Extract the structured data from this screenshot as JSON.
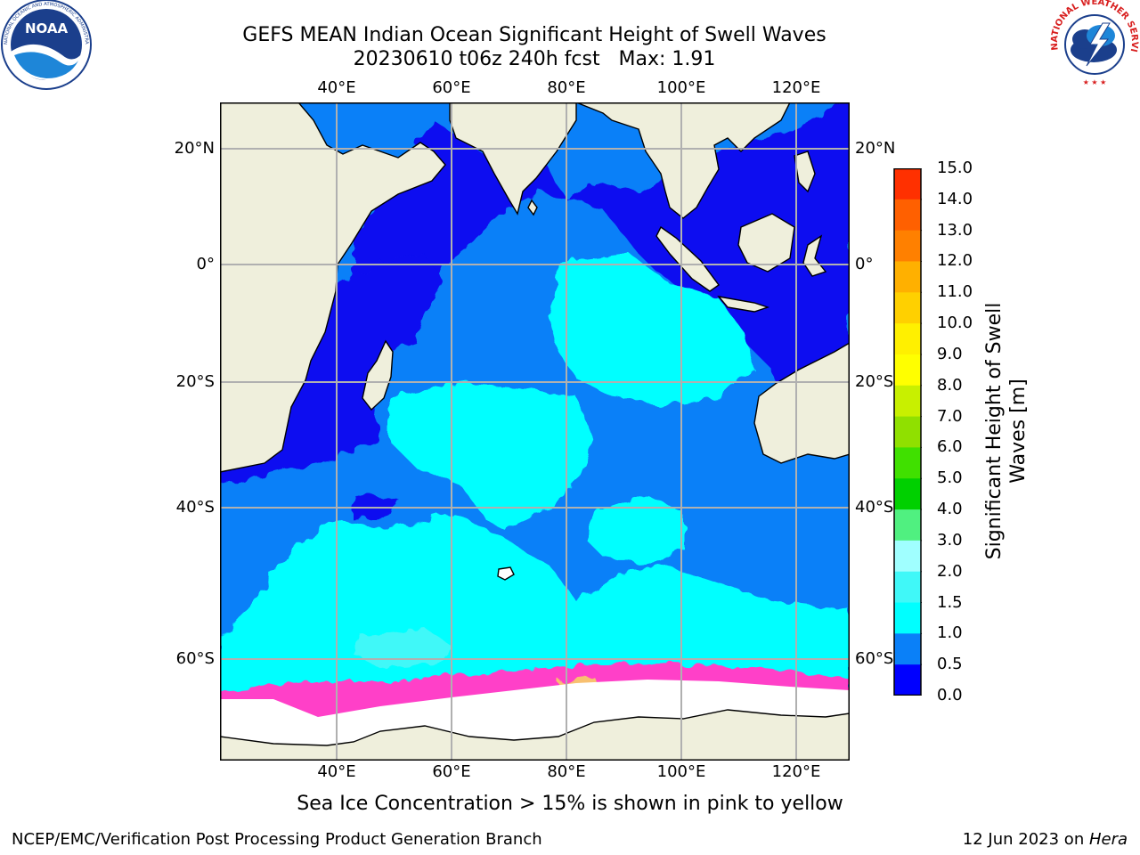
{
  "title": {
    "line1": "GEFS MEAN Indian Ocean Significant Height of Swell Waves",
    "line2": "20230610 t06z 240h fcst   Max: 1.91"
  },
  "logos": {
    "noaa_text": "NOAA",
    "noaa_ring_text": "NATIONAL OCEANIC AND ATMOSPHERIC ADMINISTRATION  ·  U.S. DEPARTMENT OF COMMERCE",
    "nws_ring_text": "NATIONAL WEATHER SERVICE"
  },
  "map": {
    "lon_labels_top": [
      "40°E",
      "60°E",
      "80°E",
      "100°E",
      "120°E"
    ],
    "lon_labels_bottom": [
      "40°E",
      "60°E",
      "80°E",
      "100°E",
      "120°E"
    ],
    "lat_labels_left": [
      "20°N",
      "0°",
      "20°S",
      "40°S",
      "60°S"
    ],
    "lat_labels_right": [
      "20°N",
      "0°",
      "20°S",
      "40°S",
      "60°S"
    ],
    "lon_values": [
      40,
      60,
      80,
      100,
      120
    ],
    "lat_values": [
      20,
      0,
      -20,
      -40,
      -60
    ],
    "colors": {
      "land": "#efefdc",
      "deep_blue": "#0a10f0",
      "mid_blue": "#0a80f8",
      "cyan": "#00ffff",
      "light_cyan": "#40f8f8",
      "ice_pink": "#ff40c8",
      "ice_orange": "#f8c070",
      "grid": "#b0b0b0"
    }
  },
  "colorbar": {
    "title": "Significant Height of Swell\nWaves [m]",
    "title_line1": "Significant Height of Swell",
    "title_line2": "Waves [m]",
    "ticks": [
      "15.0",
      "14.0",
      "13.0",
      "12.0",
      "11.0",
      "10.0",
      "9.0",
      "8.0",
      "7.0",
      "6.0",
      "5.0",
      "4.0",
      "3.0",
      "2.0",
      "1.5",
      "1.0",
      "0.5",
      "0.0"
    ],
    "colors": [
      "#0000ff",
      "#0a80f8",
      "#00ffff",
      "#40f8f8",
      "#a0ffff",
      "#50f080",
      "#00d000",
      "#40e000",
      "#90e000",
      "#c8f000",
      "#ffff00",
      "#fff000",
      "#ffd000",
      "#ffb000",
      "#ff8000",
      "#ff6000",
      "#ff3000",
      "#ff0000"
    ]
  },
  "caption": "Sea Ice Concentration > 15% is shown in pink to yellow",
  "footer": {
    "left": "NCEP/EMC/Verification Post Processing Product Generation Branch",
    "right_prefix": "12 Jun 2023 on ",
    "right_host": "Hera"
  }
}
